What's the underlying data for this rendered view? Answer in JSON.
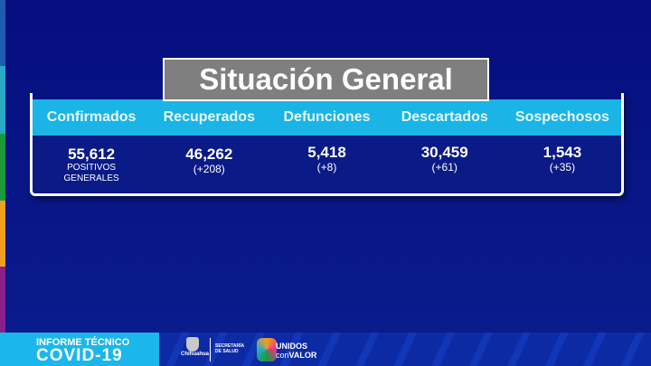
{
  "title": "Situación General",
  "stripe_colors": [
    "#1f5bb0",
    "#27a9c8",
    "#1a9a3c",
    "#f0a020",
    "#8a1f8a"
  ],
  "columns": [
    {
      "label": "Confirmados",
      "value": "55,612",
      "sub1": "POSITIVOS",
      "sub2": "GENERALES"
    },
    {
      "label": "Recuperados",
      "value": "46,262",
      "sub1": "(+208)"
    },
    {
      "label": "Defunciones",
      "value": "5,418",
      "sub1": "(+8)"
    },
    {
      "label": "Descartados",
      "value": "30,459",
      "sub1": "(+61)"
    },
    {
      "label": "Sospechosos",
      "value": "1,543",
      "sub1": "(+35)"
    }
  ],
  "footer": {
    "line1": "INFORME TÉCNICO",
    "line2": "COVID-19",
    "gov": "Chihuahua",
    "secretaria1": "SECRETARÍA",
    "secretaria2": "DE SALUD",
    "brand1": "UNIDOS",
    "brand2a": "con",
    "brand2b": "VALOR"
  }
}
